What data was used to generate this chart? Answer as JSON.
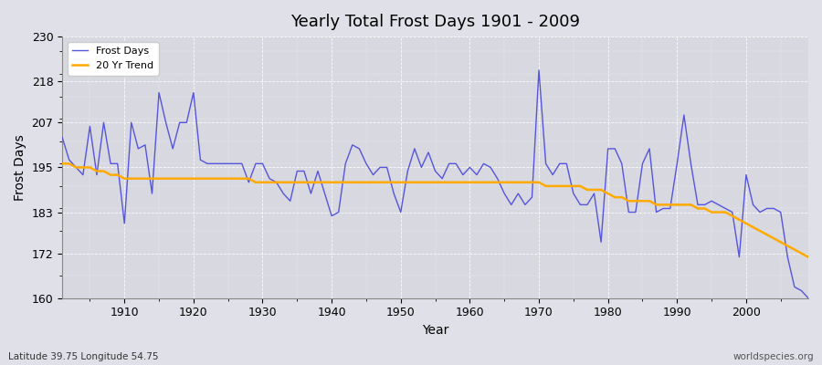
{
  "title": "Yearly Total Frost Days 1901 - 2009",
  "xlabel": "Year",
  "ylabel": "Frost Days",
  "footnote_left": "Latitude 39.75 Longitude 54.75",
  "footnote_right": "worldspecies.org",
  "ylim": [
    160,
    230
  ],
  "yticks": [
    160,
    172,
    183,
    195,
    207,
    218,
    230
  ],
  "bg_color": "#e0e0e8",
  "plot_bg_color": "#d8d8e0",
  "line_color": "#5555dd",
  "trend_color": "#ffaa00",
  "years": [
    1901,
    1902,
    1903,
    1904,
    1905,
    1906,
    1907,
    1908,
    1909,
    1910,
    1911,
    1912,
    1913,
    1914,
    1915,
    1916,
    1917,
    1918,
    1919,
    1920,
    1921,
    1922,
    1923,
    1924,
    1925,
    1926,
    1927,
    1928,
    1929,
    1930,
    1931,
    1932,
    1933,
    1934,
    1935,
    1936,
    1937,
    1938,
    1939,
    1940,
    1941,
    1942,
    1943,
    1944,
    1945,
    1946,
    1947,
    1948,
    1949,
    1950,
    1951,
    1952,
    1953,
    1954,
    1955,
    1956,
    1957,
    1958,
    1959,
    1960,
    1961,
    1962,
    1963,
    1964,
    1965,
    1966,
    1967,
    1968,
    1969,
    1970,
    1971,
    1972,
    1973,
    1974,
    1975,
    1976,
    1977,
    1978,
    1979,
    1980,
    1981,
    1982,
    1983,
    1984,
    1985,
    1986,
    1987,
    1988,
    1989,
    1990,
    1991,
    1992,
    1993,
    1994,
    1995,
    1996,
    1997,
    1998,
    1999,
    2000,
    2001,
    2002,
    2003,
    2004,
    2005,
    2006,
    2007,
    2008,
    2009
  ],
  "frost_days": [
    203,
    197,
    195,
    193,
    206,
    193,
    207,
    196,
    196,
    180,
    207,
    200,
    201,
    188,
    215,
    207,
    200,
    207,
    207,
    215,
    197,
    196,
    196,
    196,
    196,
    196,
    196,
    191,
    196,
    196,
    192,
    191,
    188,
    186,
    194,
    194,
    188,
    194,
    188,
    182,
    183,
    196,
    201,
    200,
    196,
    193,
    195,
    195,
    188,
    183,
    194,
    200,
    195,
    199,
    194,
    192,
    196,
    196,
    193,
    195,
    193,
    196,
    195,
    192,
    188,
    185,
    188,
    185,
    187,
    221,
    196,
    193,
    196,
    196,
    188,
    185,
    185,
    188,
    175,
    200,
    200,
    196,
    183,
    183,
    196,
    200,
    183,
    184,
    184,
    196,
    209,
    196,
    185,
    185,
    186,
    185,
    184,
    183,
    171,
    193,
    185,
    183,
    184,
    184,
    183,
    171,
    163,
    162,
    160
  ],
  "trend_years": [
    1901,
    1902,
    1903,
    1904,
    1905,
    1906,
    1907,
    1908,
    1909,
    1910,
    1911,
    1912,
    1913,
    1914,
    1915,
    1916,
    1917,
    1918,
    1919,
    1920,
    1921,
    1922,
    1923,
    1924,
    1925,
    1926,
    1927,
    1928,
    1929,
    1930,
    1931,
    1932,
    1933,
    1934,
    1935,
    1936,
    1937,
    1938,
    1939,
    1940,
    1941,
    1942,
    1943,
    1944,
    1945,
    1946,
    1947,
    1948,
    1949,
    1950,
    1951,
    1952,
    1953,
    1954,
    1955,
    1956,
    1957,
    1958,
    1959,
    1960,
    1961,
    1962,
    1963,
    1964,
    1965,
    1966,
    1967,
    1968,
    1969,
    1970,
    1971,
    1972,
    1973,
    1974,
    1975,
    1976,
    1977,
    1978,
    1979,
    1980,
    1981,
    1982,
    1983,
    1984,
    1985,
    1986,
    1987,
    1988,
    1989,
    1990,
    1991,
    1992,
    1993,
    1994,
    1995,
    1996,
    1997,
    1998,
    1999,
    2000,
    2001,
    2002,
    2003,
    2004,
    2005,
    2006,
    2007,
    2008,
    2009
  ],
  "trend_values": [
    196,
    196,
    195,
    195,
    195,
    194,
    194,
    193,
    193,
    192,
    192,
    192,
    192,
    192,
    192,
    192,
    192,
    192,
    192,
    192,
    192,
    192,
    192,
    192,
    192,
    192,
    192,
    192,
    191,
    191,
    191,
    191,
    191,
    191,
    191,
    191,
    191,
    191,
    191,
    191,
    191,
    191,
    191,
    191,
    191,
    191,
    191,
    191,
    191,
    191,
    191,
    191,
    191,
    191,
    191,
    191,
    191,
    191,
    191,
    191,
    191,
    191,
    191,
    191,
    191,
    191,
    191,
    191,
    191,
    191,
    190,
    190,
    190,
    190,
    190,
    190,
    189,
    189,
    189,
    188,
    187,
    187,
    186,
    186,
    186,
    186,
    185,
    185,
    185,
    185,
    185,
    185,
    184,
    184,
    183,
    183,
    183,
    182,
    181,
    180,
    179,
    178,
    177,
    176,
    175,
    174,
    173,
    172,
    171
  ]
}
